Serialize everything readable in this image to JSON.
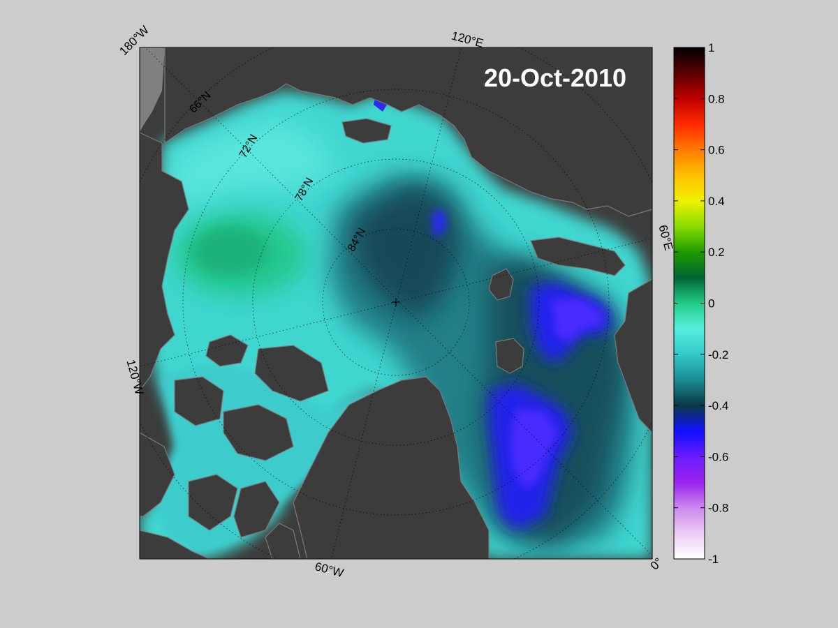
{
  "map": {
    "date": "20-Oct-2010",
    "longitude_labels": [
      "180°W",
      "120°E",
      "60°E",
      "0°",
      "60°W",
      "120°W"
    ],
    "latitude_labels": [
      "66°N",
      "72°N",
      "78°N",
      "84°N"
    ],
    "colors": {
      "background": "#cccccc",
      "land": "#3c3c3c",
      "land_edge": "#7a7a7a"
    }
  },
  "colorbar": {
    "ticks": [
      "1",
      "0.8",
      "0.6",
      "0.4",
      "0.2",
      "0",
      "-0.2",
      "-0.4",
      "-0.6",
      "-0.8",
      "-1"
    ],
    "range": [
      -1,
      1
    ],
    "stops": [
      {
        "v": 1.0,
        "c": "#000000"
      },
      {
        "v": 0.9,
        "c": "#5a0000"
      },
      {
        "v": 0.8,
        "c": "#c00000"
      },
      {
        "v": 0.7,
        "c": "#ff2a00"
      },
      {
        "v": 0.6,
        "c": "#ff7a00"
      },
      {
        "v": 0.5,
        "c": "#ffc000"
      },
      {
        "v": 0.4,
        "c": "#f0f000"
      },
      {
        "v": 0.3,
        "c": "#88dd00"
      },
      {
        "v": 0.2,
        "c": "#1e9a00"
      },
      {
        "v": 0.1,
        "c": "#006633"
      },
      {
        "v": 0.0,
        "c": "#22cc88"
      },
      {
        "v": -0.1,
        "c": "#55eedd"
      },
      {
        "v": -0.2,
        "c": "#33c8c8"
      },
      {
        "v": -0.3,
        "c": "#1a8c94"
      },
      {
        "v": -0.4,
        "c": "#0a3846"
      },
      {
        "v": -0.5,
        "c": "#1010ff"
      },
      {
        "v": -0.6,
        "c": "#6a1cff"
      },
      {
        "v": -0.7,
        "c": "#9a22ee"
      },
      {
        "v": -0.8,
        "c": "#cc88ee"
      },
      {
        "v": -0.9,
        "c": "#eeccf6"
      },
      {
        "v": -1.0,
        "c": "#ffffff"
      }
    ]
  }
}
